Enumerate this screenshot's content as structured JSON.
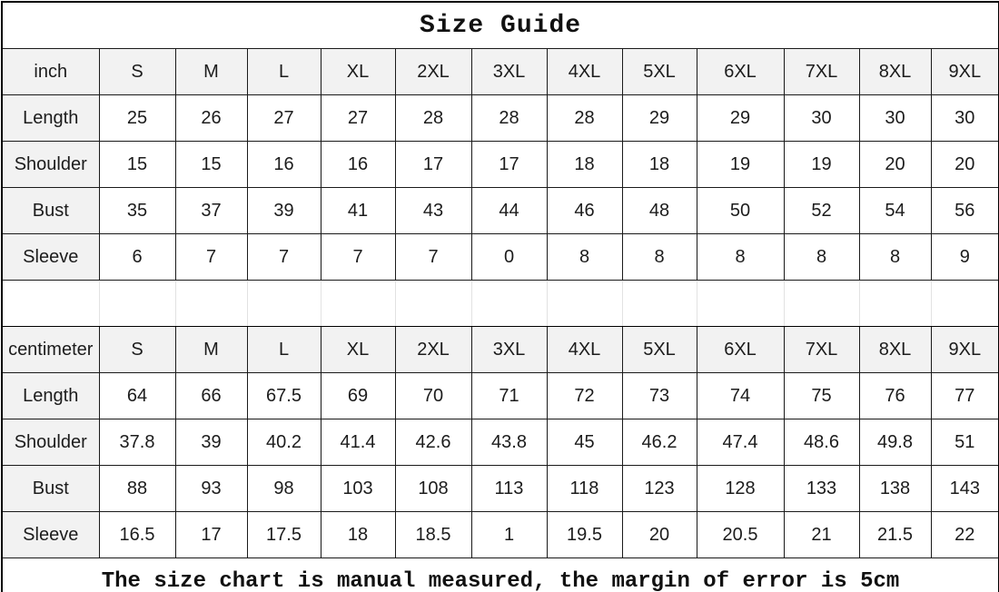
{
  "title": "Size Guide",
  "footer": "The size chart is manual measured, the margin of error is 5cm",
  "colors": {
    "header_bg": "#f2f2f2",
    "grid_border": "#000000",
    "faint_grid": "#e2e2e2",
    "text": "#1c1c1c"
  },
  "chart_data": {
    "type": "table",
    "title": "Size Guide",
    "note": "The size chart is manual measured, the margin of error is 5cm"
  },
  "tables": [
    {
      "unit": "inch",
      "sizes": [
        "S",
        "M",
        "L",
        "XL",
        "2XL",
        "3XL",
        "4XL",
        "5XL",
        "6XL",
        "7XL",
        "8XL",
        "9XL"
      ],
      "rows": [
        {
          "label": "Length",
          "values": [
            "25",
            "26",
            "27",
            "27",
            "28",
            "28",
            "28",
            "29",
            "29",
            "30",
            "30",
            "30"
          ]
        },
        {
          "label": "Shoulder",
          "values": [
            "15",
            "15",
            "16",
            "16",
            "17",
            "17",
            "18",
            "18",
            "19",
            "19",
            "20",
            "20"
          ]
        },
        {
          "label": "Bust",
          "values": [
            "35",
            "37",
            "39",
            "41",
            "43",
            "44",
            "46",
            "48",
            "50",
            "52",
            "54",
            "56"
          ]
        },
        {
          "label": "Sleeve",
          "values": [
            "6",
            "7",
            "7",
            "7",
            "7",
            "0",
            "8",
            "8",
            "8",
            "8",
            "8",
            "9"
          ]
        }
      ]
    },
    {
      "unit": "centimeter",
      "sizes": [
        "S",
        "M",
        "L",
        "XL",
        "2XL",
        "3XL",
        "4XL",
        "5XL",
        "6XL",
        "7XL",
        "8XL",
        "9XL"
      ],
      "rows": [
        {
          "label": "Length",
          "values": [
            "64",
            "66",
            "67.5",
            "69",
            "70",
            "71",
            "72",
            "73",
            "74",
            "75",
            "76",
            "77"
          ]
        },
        {
          "label": "Shoulder",
          "values": [
            "37.8",
            "39",
            "40.2",
            "41.4",
            "42.6",
            "43.8",
            "45",
            "46.2",
            "47.4",
            "48.6",
            "49.8",
            "51"
          ]
        },
        {
          "label": "Bust",
          "values": [
            "88",
            "93",
            "98",
            "103",
            "108",
            "113",
            "118",
            "123",
            "128",
            "133",
            "138",
            "143"
          ]
        },
        {
          "label": "Sleeve",
          "values": [
            "16.5",
            "17",
            "17.5",
            "18",
            "18.5",
            "1",
            "19.5",
            "20",
            "20.5",
            "21",
            "21.5",
            "22"
          ]
        }
      ]
    }
  ]
}
